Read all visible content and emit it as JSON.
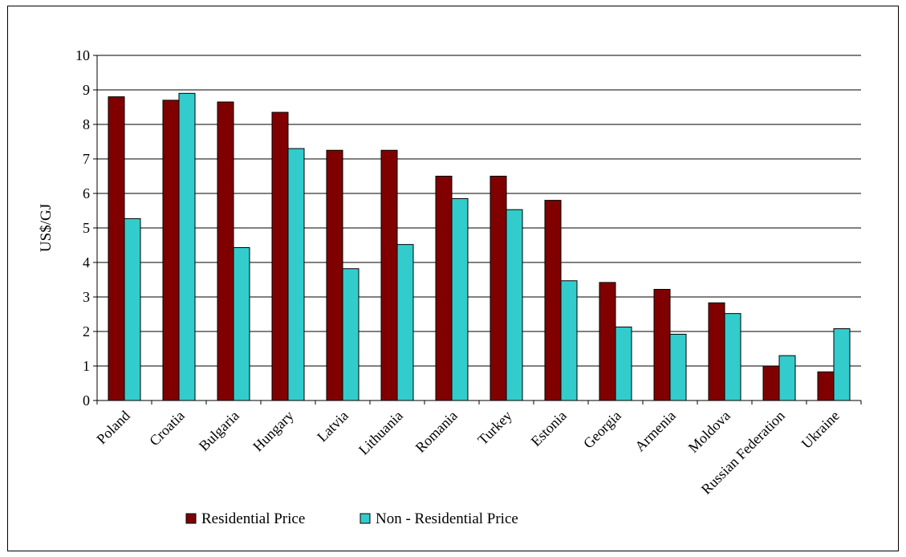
{
  "chart_data": {
    "type": "bar",
    "categories": [
      "Poland",
      "Croatia",
      "Bulgaria",
      "Hungary",
      "Latvia",
      "Lithuania",
      "Romania",
      "Turkey",
      "Estonia",
      "Georgia",
      "Armenia",
      "Moldova",
      "Russian Federation",
      "Ukraine"
    ],
    "series": [
      {
        "name": "Residential Price",
        "color": "#800000",
        "values": [
          8.8,
          8.7,
          8.65,
          8.35,
          7.25,
          7.25,
          6.5,
          6.5,
          5.8,
          3.42,
          3.22,
          2.83,
          1.0,
          0.83
        ]
      },
      {
        "name": "Non - Residential Price",
        "color": "#33cccc",
        "values": [
          5.27,
          8.9,
          4.43,
          7.3,
          3.82,
          4.52,
          5.85,
          5.53,
          3.47,
          2.13,
          1.92,
          2.52,
          1.3,
          2.08
        ]
      }
    ],
    "title": "",
    "xlabel": "",
    "ylabel": "US$/GJ",
    "ylim": [
      0,
      10
    ],
    "yticks": [
      "0",
      "1",
      "2",
      "3",
      "4",
      "5",
      "6",
      "7",
      "8",
      "9",
      "10"
    ],
    "grid": true,
    "legend_position": "bottom"
  }
}
